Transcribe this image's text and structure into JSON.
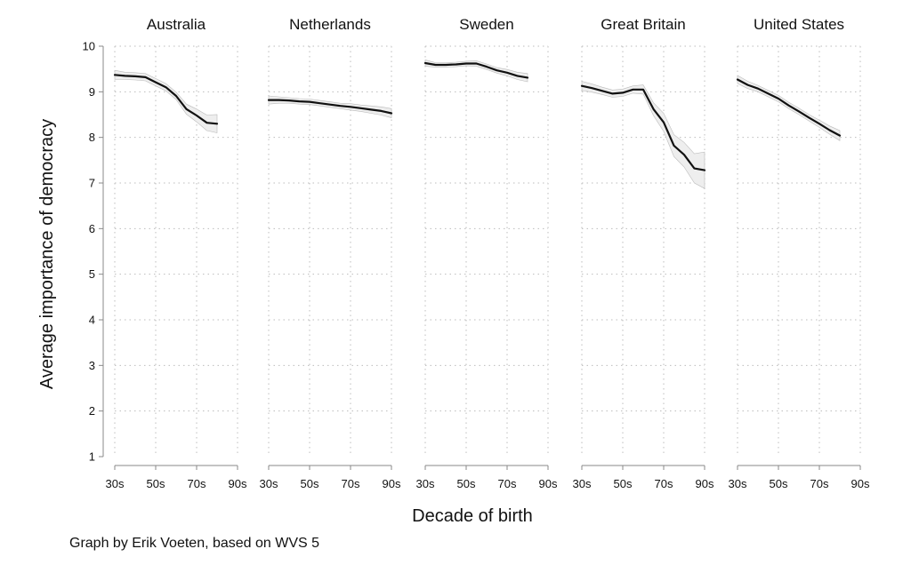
{
  "chart_data": {
    "type": "line",
    "ylabel": "Average importance of democracy",
    "xlabel": "Decade of birth",
    "ylim": [
      1,
      10
    ],
    "yticks": [
      "1",
      "2",
      "3",
      "4",
      "5",
      "6",
      "7",
      "8",
      "9",
      "10"
    ],
    "xlim": [
      30,
      90
    ],
    "xticks": [
      "30s",
      "50s",
      "70s",
      "90s"
    ],
    "grid": true,
    "confidence_band": true,
    "panels": [
      {
        "title": "Australia",
        "x": [
          30,
          35,
          40,
          45,
          50,
          55,
          60,
          65,
          70,
          75,
          80
        ],
        "y": [
          9.37,
          9.35,
          9.34,
          9.32,
          9.21,
          9.1,
          8.91,
          8.62,
          8.48,
          8.32,
          8.3
        ],
        "lower": [
          9.27,
          9.27,
          9.26,
          9.24,
          9.13,
          9.02,
          8.83,
          8.51,
          8.34,
          8.15,
          8.1
        ],
        "upper": [
          9.47,
          9.43,
          9.42,
          9.4,
          9.29,
          9.18,
          8.99,
          8.73,
          8.62,
          8.49,
          8.5
        ]
      },
      {
        "title": "Netherlands",
        "x": [
          30,
          35,
          40,
          45,
          50,
          55,
          60,
          65,
          70,
          75,
          80,
          85,
          90
        ],
        "y": [
          8.82,
          8.82,
          8.81,
          8.79,
          8.78,
          8.75,
          8.72,
          8.69,
          8.67,
          8.64,
          8.61,
          8.58,
          8.53
        ],
        "lower": [
          8.73,
          8.75,
          8.75,
          8.73,
          8.72,
          8.69,
          8.66,
          8.63,
          8.6,
          8.57,
          8.53,
          8.49,
          8.43
        ],
        "upper": [
          8.91,
          8.89,
          8.87,
          8.85,
          8.84,
          8.81,
          8.78,
          8.75,
          8.74,
          8.71,
          8.69,
          8.67,
          8.63
        ]
      },
      {
        "title": "Sweden",
        "x": [
          30,
          35,
          40,
          45,
          50,
          55,
          60,
          65,
          70,
          75,
          80
        ],
        "y": [
          9.63,
          9.59,
          9.59,
          9.6,
          9.62,
          9.62,
          9.55,
          9.47,
          9.42,
          9.35,
          9.31
        ],
        "lower": [
          9.56,
          9.54,
          9.54,
          9.55,
          9.57,
          9.56,
          9.49,
          9.41,
          9.35,
          9.27,
          9.22
        ],
        "upper": [
          9.7,
          9.64,
          9.64,
          9.65,
          9.67,
          9.68,
          9.61,
          9.53,
          9.49,
          9.43,
          9.4
        ]
      },
      {
        "title": "Great Britain",
        "x": [
          30,
          35,
          40,
          45,
          50,
          55,
          60,
          65,
          70,
          75,
          80,
          85,
          90
        ],
        "y": [
          9.13,
          9.08,
          9.02,
          8.96,
          8.98,
          9.05,
          9.05,
          8.62,
          8.33,
          7.82,
          7.62,
          7.32,
          7.28
        ],
        "lower": [
          9.03,
          8.99,
          8.94,
          8.88,
          8.9,
          8.97,
          8.95,
          8.48,
          8.13,
          7.58,
          7.35,
          7.0,
          6.88
        ],
        "upper": [
          9.23,
          9.17,
          9.1,
          9.04,
          9.06,
          9.13,
          9.15,
          8.76,
          8.53,
          8.06,
          7.89,
          7.64,
          7.68
        ]
      },
      {
        "title": "United States",
        "x": [
          30,
          35,
          40,
          45,
          50,
          55,
          60,
          65,
          70,
          75,
          80
        ],
        "y": [
          9.27,
          9.15,
          9.07,
          8.96,
          8.85,
          8.7,
          8.57,
          8.43,
          8.3,
          8.16,
          8.04
        ],
        "lower": [
          9.18,
          9.07,
          9.0,
          8.89,
          8.78,
          8.63,
          8.5,
          8.36,
          8.22,
          8.07,
          7.93
        ],
        "upper": [
          9.36,
          9.23,
          9.14,
          9.03,
          8.92,
          8.77,
          8.64,
          8.5,
          8.38,
          8.25,
          8.15
        ]
      }
    ]
  },
  "caption": "Graph by Erik Voeten, based on WVS 5",
  "colors": {
    "line": "#111111",
    "band": "#eeeeee",
    "band_edge": "#bbbbbb",
    "grid": "#bcbcbc",
    "axis": "#888888"
  }
}
